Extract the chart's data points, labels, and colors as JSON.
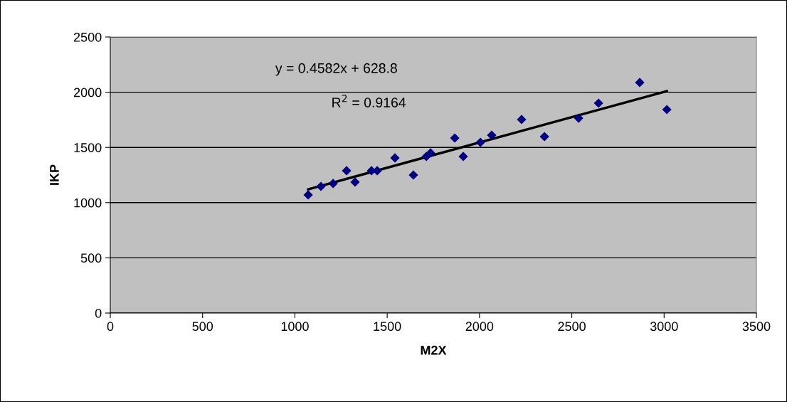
{
  "chart_data": {
    "type": "scatter",
    "xlabel": "M2X",
    "ylabel": "IKP",
    "xlim": [
      0,
      3500
    ],
    "xticks": [
      0,
      500,
      1000,
      1500,
      2000,
      2500,
      3000,
      3500
    ],
    "ylim": [
      0,
      2500
    ],
    "yticks": [
      0,
      500,
      1000,
      1500,
      2000,
      2500
    ],
    "grid": "y",
    "marker": "diamond",
    "legend": false,
    "series": [
      {
        "color": "#000080",
        "x": [
          1072,
          1141,
          1207,
          1280,
          1326,
          1415,
          1446,
          1542,
          1642,
          1712,
          1735,
          1866,
          1912,
          2005,
          2066,
          2228,
          2352,
          2537,
          2645,
          2868,
          3015
        ],
        "values": [
          1070,
          1147,
          1173,
          1289,
          1186,
          1289,
          1289,
          1405,
          1250,
          1418,
          1450,
          1585,
          1418,
          1546,
          1611,
          1753,
          1598,
          1765,
          1901,
          2088,
          1843
        ]
      },
      {
        "type": "line",
        "color": "#000000",
        "line_style": "solid",
        "marker": "none",
        "x": [
          1072,
          3015
        ],
        "values": [
          1120,
          2010
        ]
      }
    ],
    "annotations": [
      "y = 0.4582x + 628.8",
      "R$^{2}$ = 0.9164"
    ]
  }
}
